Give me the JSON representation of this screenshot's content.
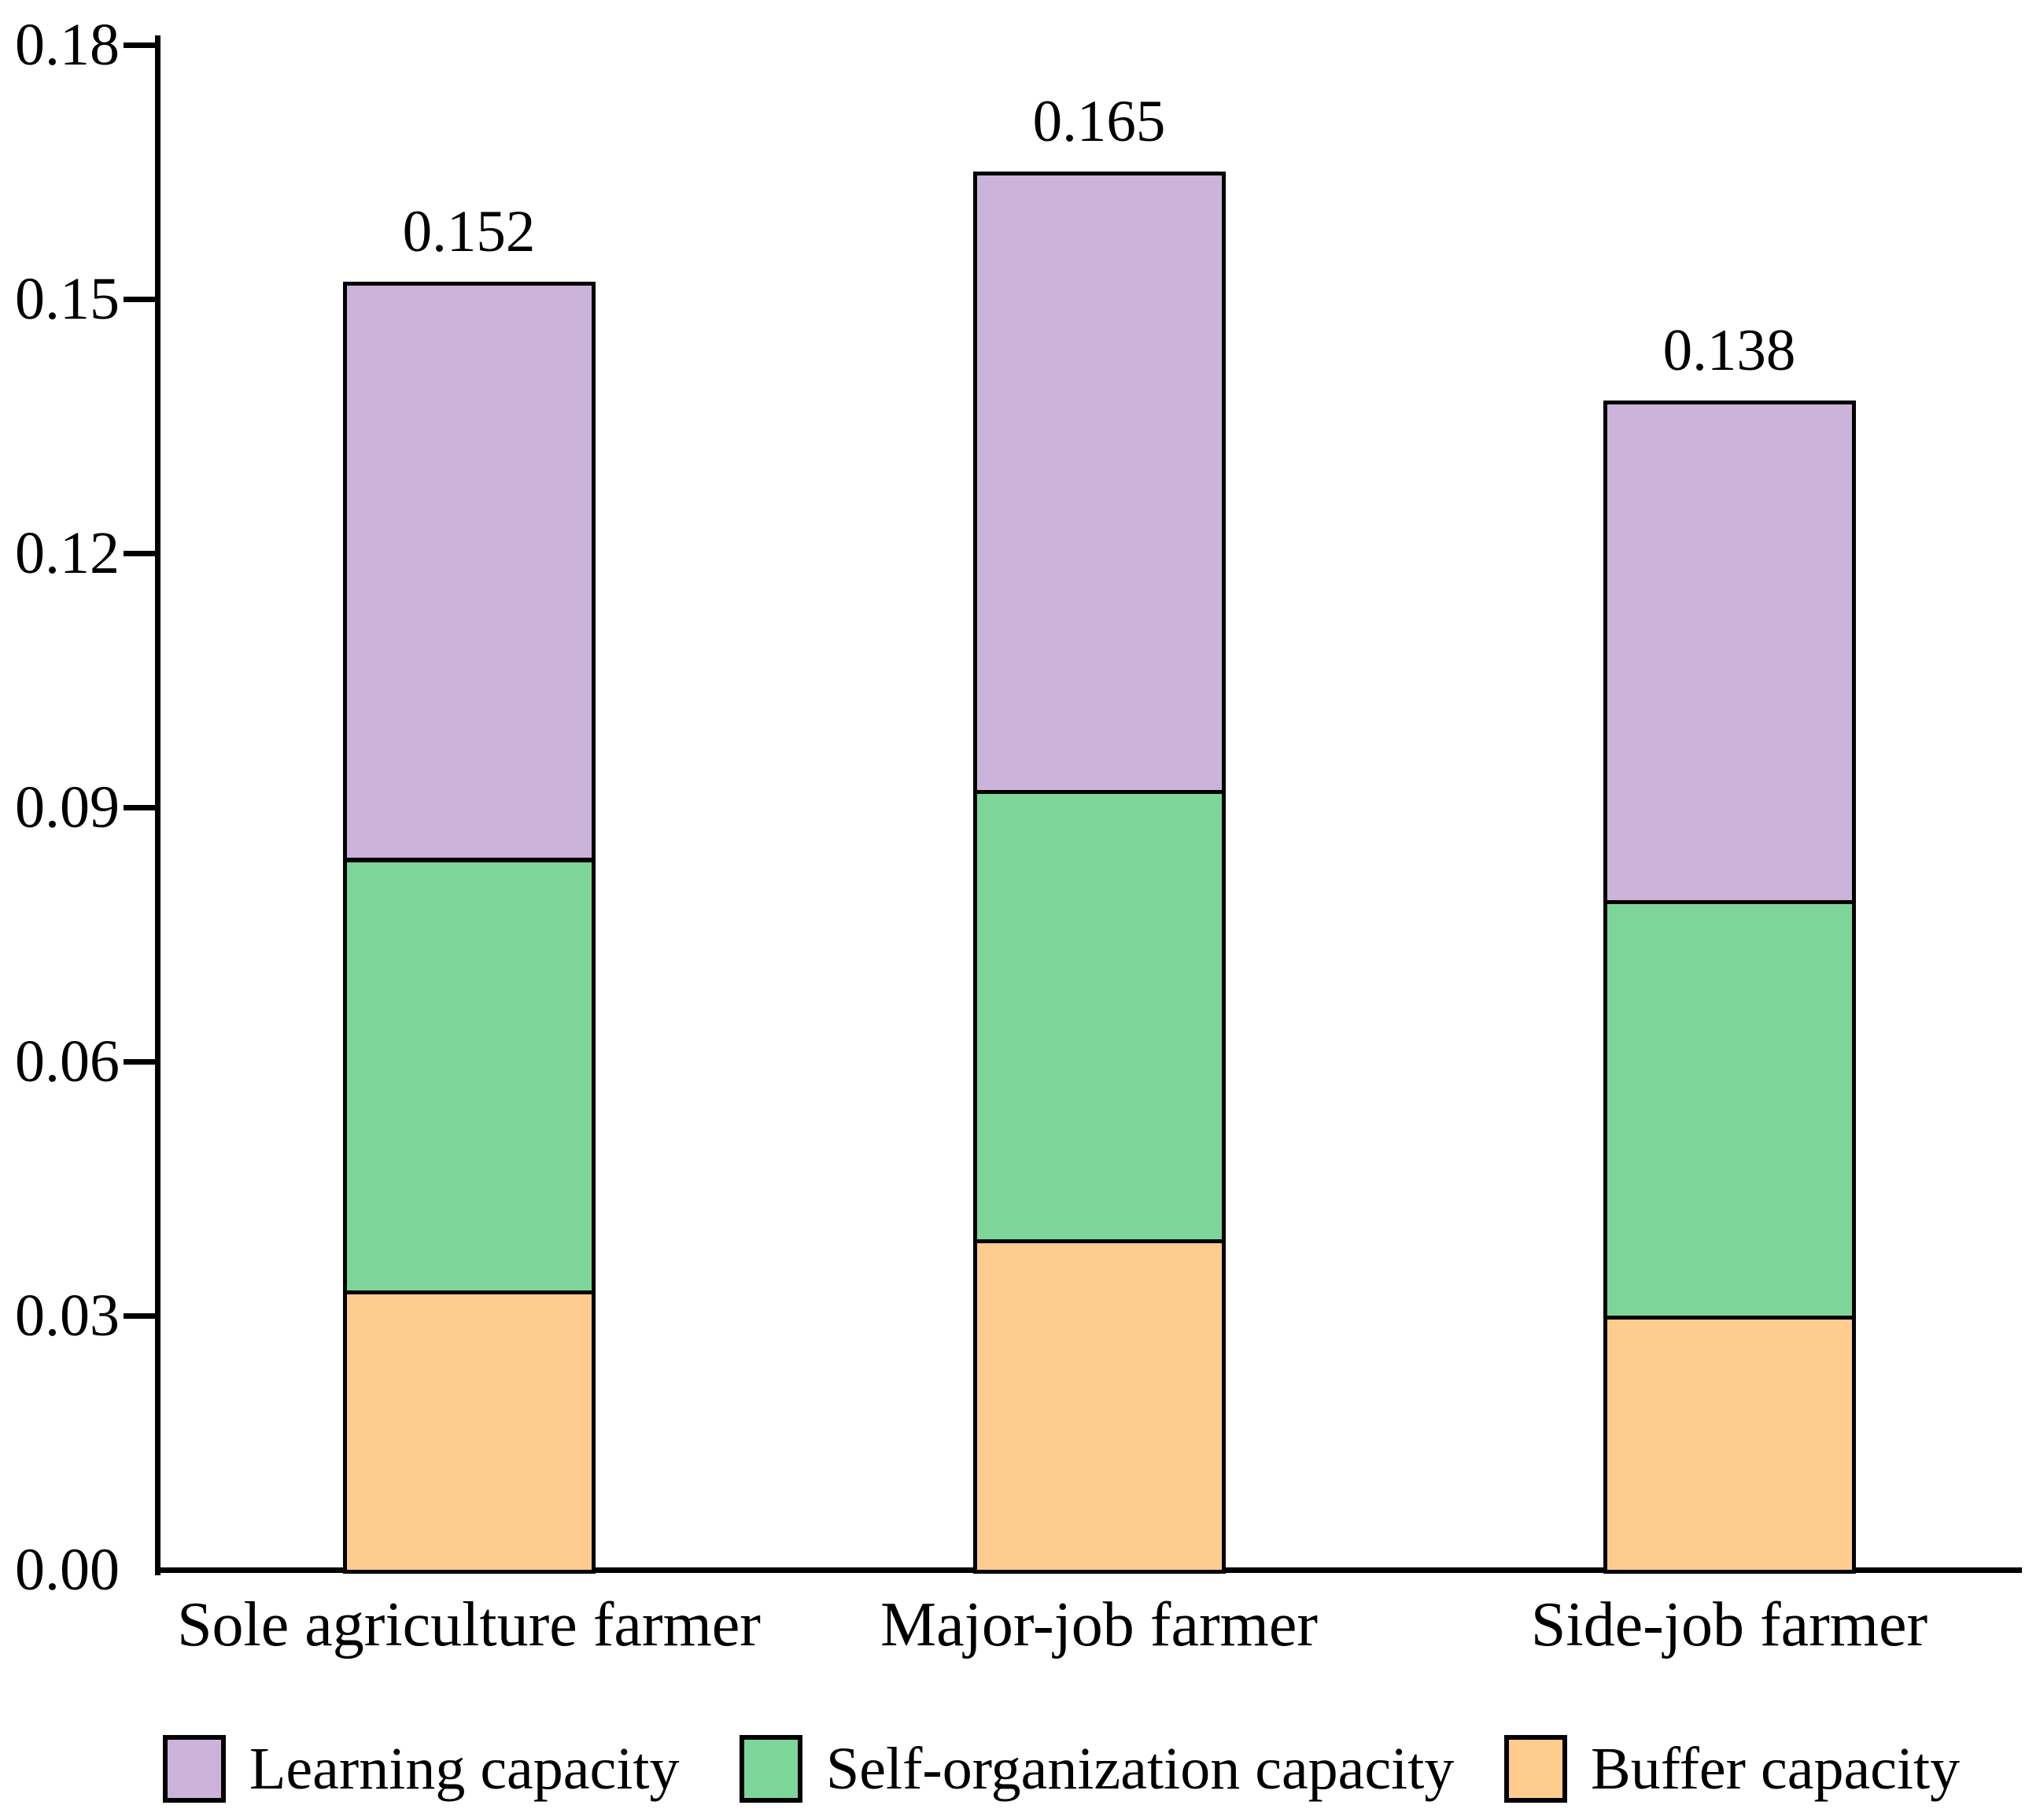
{
  "chart_data": {
    "type": "bar",
    "stacked": true,
    "title": "",
    "xlabel": "",
    "ylabel": "",
    "categories": [
      "Sole agriculture farmer",
      "Major-job farmer",
      "Side-job farmer"
    ],
    "series": [
      {
        "name": "Buffer capacity",
        "color": "#FDCC8E",
        "values": [
          0.033,
          0.039,
          0.03
        ]
      },
      {
        "name": "Self-organization capacity",
        "color": "#7ED59A",
        "values": [
          0.051,
          0.053,
          0.049
        ]
      },
      {
        "name": "Learning capacity",
        "color": "#CBB3DA",
        "values": [
          0.068,
          0.073,
          0.059
        ]
      }
    ],
    "totals": [
      0.152,
      0.165,
      0.138
    ],
    "total_labels": [
      "0.152",
      "0.165",
      "0.138"
    ],
    "ylim": [
      0,
      0.18
    ],
    "ytick_step": 0.03,
    "ytick_labels": [
      "0.00",
      "0.03",
      "0.06",
      "0.09",
      "0.12",
      "0.15",
      "0.18"
    ],
    "grid": false,
    "legend_position": "bottom",
    "legend_order": [
      "Learning capacity",
      "Self-organization capacity",
      "Buffer capacity"
    ],
    "axis_color": "#000000",
    "bar_outline_color": "#000000"
  }
}
